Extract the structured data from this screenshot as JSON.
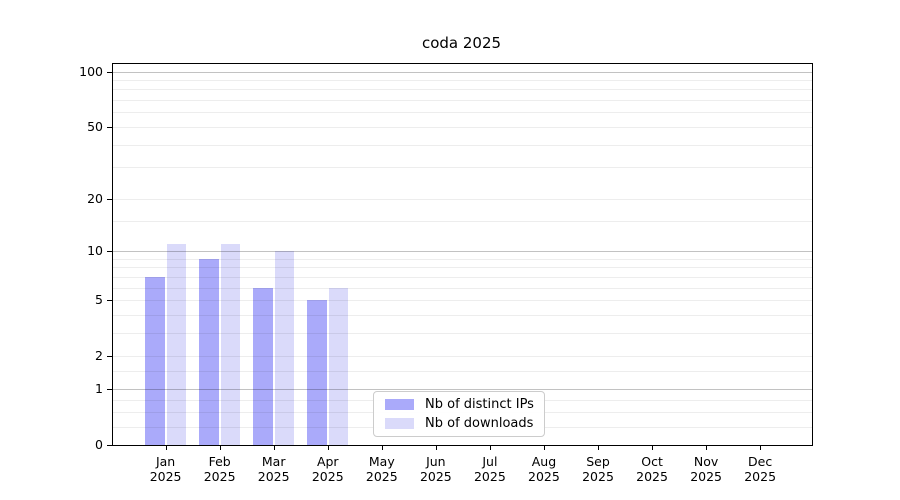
{
  "chart_data": {
    "type": "bar",
    "title": "coda 2025",
    "categories": [
      "Jan",
      "Feb",
      "Mar",
      "Apr",
      "May",
      "Jun",
      "Jul",
      "Aug",
      "Sep",
      "Oct",
      "Nov",
      "Dec"
    ],
    "year_label": "2025",
    "series": [
      {
        "name": "Nb of distinct IPs",
        "color": "#aaaafa",
        "values": [
          7,
          9,
          6,
          5,
          0,
          0,
          0,
          0,
          0,
          0,
          0,
          0
        ]
      },
      {
        "name": "Nb of downloads",
        "color": "#dadafa",
        "values": [
          11,
          11,
          10,
          6,
          0,
          0,
          0,
          0,
          0,
          0,
          0,
          0
        ]
      }
    ],
    "yticks": [
      0,
      1,
      2,
      5,
      10,
      20,
      50,
      100
    ],
    "major_gridlines": [
      1,
      10,
      100
    ],
    "minor_gridlines": [
      0.25,
      0.5,
      0.75,
      1.5,
      3,
      4,
      6,
      7,
      8,
      9,
      15,
      30,
      40,
      60,
      70,
      80,
      90
    ],
    "scale": "log1p",
    "ylim": [
      0,
      110
    ],
    "grid": true,
    "legend_position": "lower-center"
  }
}
